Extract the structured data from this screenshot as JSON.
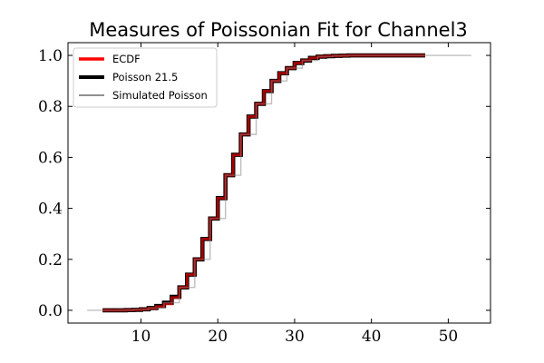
{
  "chart_data": {
    "type": "line",
    "title": "Measures of Poissonian Fit for Channel3",
    "xlabel": "",
    "ylabel": "",
    "xlim": [
      0.5,
      55.5
    ],
    "ylim": [
      -0.05,
      1.05
    ],
    "xticks": [
      10,
      20,
      30,
      40,
      50
    ],
    "yticks": [
      0.0,
      0.2,
      0.4,
      0.6,
      0.8,
      1.0
    ],
    "xtick_labels": [
      "10",
      "20",
      "30",
      "40",
      "50"
    ],
    "ytick_labels": [
      "0.0",
      "0.2",
      "0.4",
      "0.6",
      "0.8",
      "1.0"
    ],
    "grid": false,
    "legend_position": "top-left",
    "series": [
      {
        "name": "ECDF",
        "color": "#ff0000",
        "style": "step",
        "x": [
          5,
          6,
          7,
          8,
          9,
          10,
          11,
          12,
          13,
          14,
          15,
          16,
          17,
          18,
          19,
          20,
          21,
          22,
          23,
          24,
          25,
          26,
          27,
          28,
          29,
          30,
          31,
          32,
          33,
          34,
          35,
          36,
          37,
          38,
          47
        ],
        "y": [
          0.0,
          0.0,
          0.0,
          0.001,
          0.002,
          0.004,
          0.008,
          0.015,
          0.025,
          0.05,
          0.09,
          0.14,
          0.2,
          0.28,
          0.36,
          0.44,
          0.53,
          0.61,
          0.69,
          0.76,
          0.81,
          0.86,
          0.9,
          0.93,
          0.95,
          0.97,
          0.98,
          0.99,
          0.995,
          0.997,
          0.998,
          0.999,
          1.0,
          1.0,
          1.0
        ]
      },
      {
        "name": "Poisson 21.5",
        "color": "#000000",
        "style": "step",
        "x": [
          5,
          6,
          7,
          8,
          9,
          10,
          11,
          12,
          13,
          14,
          15,
          16,
          17,
          18,
          19,
          20,
          21,
          22,
          23,
          24,
          25,
          26,
          27,
          28,
          29,
          30,
          31,
          32,
          33,
          34,
          35,
          36,
          37,
          38,
          47
        ],
        "y": [
          0.0,
          0.0,
          0.0,
          0.001,
          0.002,
          0.004,
          0.009,
          0.017,
          0.03,
          0.053,
          0.09,
          0.14,
          0.2,
          0.28,
          0.36,
          0.44,
          0.53,
          0.61,
          0.69,
          0.76,
          0.81,
          0.86,
          0.9,
          0.93,
          0.95,
          0.97,
          0.98,
          0.99,
          0.995,
          0.997,
          0.998,
          0.999,
          1.0,
          1.0,
          1.0
        ]
      },
      {
        "name": "Simulated Poisson",
        "color": "#808080",
        "style": "step",
        "x": [
          3,
          5,
          7,
          9,
          11,
          13,
          15,
          17,
          19,
          21,
          23,
          25,
          27,
          29,
          31,
          33,
          35,
          37,
          40,
          45,
          53
        ],
        "y": [
          0.0,
          0.0,
          0.001,
          0.003,
          0.009,
          0.03,
          0.09,
          0.2,
          0.36,
          0.53,
          0.69,
          0.81,
          0.9,
          0.95,
          0.98,
          0.995,
          0.998,
          1.0,
          1.0,
          1.0,
          1.0
        ]
      }
    ]
  }
}
